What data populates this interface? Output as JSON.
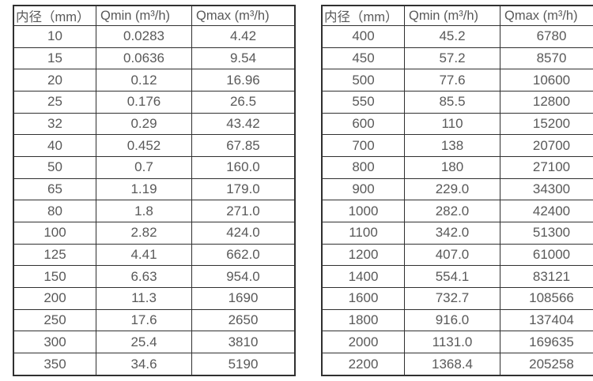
{
  "colors": {
    "text": "#595959",
    "border": "#303030",
    "background": "#ffffff"
  },
  "tables": [
    {
      "name": "small-diameters",
      "headers": [
        "内径（mm）",
        "Qmin (m³/h)",
        "Qmax (m³/h)"
      ],
      "rows": [
        [
          "10",
          "0.0283",
          "4.42"
        ],
        [
          "15",
          "0.0636",
          "9.54"
        ],
        [
          "20",
          "0.12",
          "16.96"
        ],
        [
          "25",
          "0.176",
          "26.5"
        ],
        [
          "32",
          "0.29",
          "43.42"
        ],
        [
          "40",
          "0.452",
          "67.85"
        ],
        [
          "50",
          "0.7",
          "160.0"
        ],
        [
          "65",
          "1.19",
          "179.0"
        ],
        [
          "80",
          "1.8",
          "271.0"
        ],
        [
          "100",
          "2.82",
          "424.0"
        ],
        [
          "125",
          "4.41",
          "662.0"
        ],
        [
          "150",
          "6.63",
          "954.0"
        ],
        [
          "200",
          "11.3",
          "1690"
        ],
        [
          "250",
          "17.6",
          "2650"
        ],
        [
          "300",
          "25.4",
          "3810"
        ],
        [
          "350",
          "34.6",
          "5190"
        ]
      ]
    },
    {
      "name": "large-diameters",
      "headers": [
        "内径（mm）",
        "Qmin (m³/h)",
        "Qmax (m³/h)"
      ],
      "rows": [
        [
          "400",
          "45.2",
          "6780"
        ],
        [
          "450",
          "57.2",
          "8570"
        ],
        [
          "500",
          "77.6",
          "10600"
        ],
        [
          "550",
          "85.5",
          "12800"
        ],
        [
          "600",
          "110",
          "15200"
        ],
        [
          "700",
          "138",
          "20700"
        ],
        [
          "800",
          "180",
          "27100"
        ],
        [
          "900",
          "229.0",
          "34300"
        ],
        [
          "1000",
          "282.0",
          "42400"
        ],
        [
          "1100",
          "342.0",
          "51300"
        ],
        [
          "1200",
          "407.0",
          "61000"
        ],
        [
          "1400",
          "554.1",
          "83121"
        ],
        [
          "1600",
          "732.7",
          "108566"
        ],
        [
          "1800",
          "916.0",
          "137404"
        ],
        [
          "2000",
          "1131.0",
          "169635"
        ],
        [
          "2200",
          "1368.4",
          "205258"
        ]
      ]
    }
  ]
}
